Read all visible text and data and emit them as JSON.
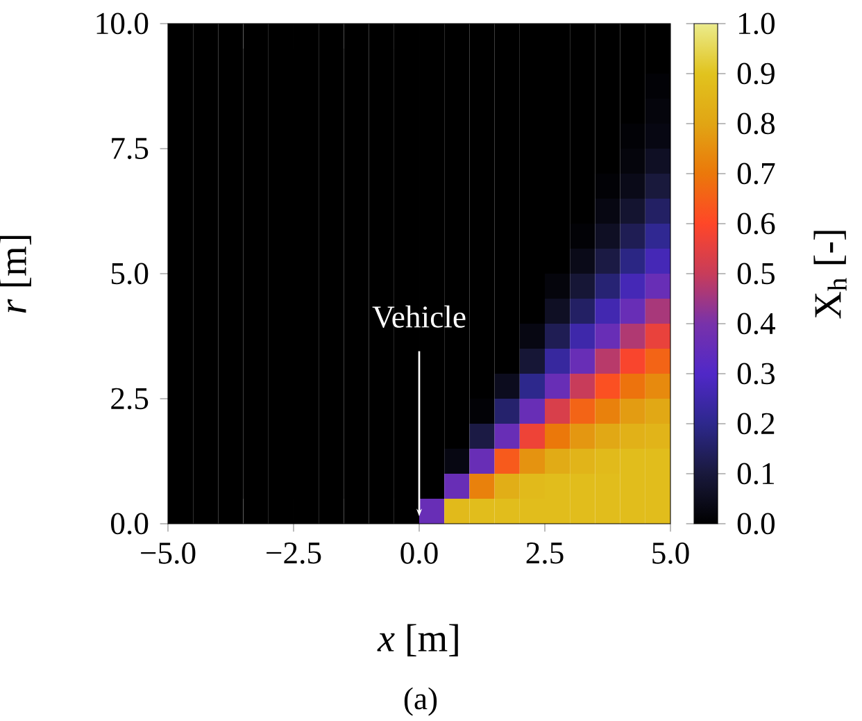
{
  "chart_data": {
    "type": "heatmap",
    "xlabel": "*x* [m]",
    "ylabel": "*r* [m]",
    "clabel": "X$_{h}$ [-]",
    "annotations": [
      "Vehicle",
      "(a)"
    ],
    "x": [
      -4.75,
      -4.25,
      -3.75,
      -3.25,
      -2.75,
      -2.25,
      -1.75,
      -1.25,
      -0.75,
      -0.25,
      0.25,
      0.75,
      1.25,
      1.75,
      2.25,
      2.75,
      3.25,
      3.75,
      4.25,
      4.75
    ],
    "y": [
      9.75,
      9.25,
      8.75,
      8.25,
      7.75,
      7.25,
      6.75,
      6.25,
      5.75,
      5.25,
      4.75,
      4.25,
      3.75,
      3.25,
      2.75,
      2.25,
      1.75,
      1.25,
      0.75,
      0.25
    ],
    "xlim": [
      -5,
      5
    ],
    "ylim": [
      0,
      10
    ],
    "xticks": [
      {
        "value": -5,
        "label": "−5.0"
      },
      {
        "value": -2.5,
        "label": "−2.5"
      },
      {
        "value": 0,
        "label": "0.0"
      },
      {
        "value": 2.5,
        "label": "2.5"
      },
      {
        "value": 5,
        "label": "5.0"
      }
    ],
    "yticks": [
      {
        "value": 0,
        "label": "0.0"
      },
      {
        "value": 2.5,
        "label": "2.5"
      },
      {
        "value": 5,
        "label": "5.0"
      },
      {
        "value": 7.5,
        "label": "7.5"
      },
      {
        "value": 10,
        "label": "10.0"
      }
    ],
    "clim": [
      0,
      1
    ],
    "cticks": [
      {
        "value": 0,
        "label": "0.0"
      },
      {
        "value": 0.1,
        "label": "0.1"
      },
      {
        "value": 0.2,
        "label": "0.2"
      },
      {
        "value": 0.3,
        "label": "0.3"
      },
      {
        "value": 0.4,
        "label": "0.4"
      },
      {
        "value": 0.5,
        "label": "0.5"
      },
      {
        "value": 0.6,
        "label": "0.6"
      },
      {
        "value": 0.7,
        "label": "0.7"
      },
      {
        "value": 0.8,
        "label": "0.8"
      },
      {
        "value": 0.9,
        "label": "0.9"
      },
      {
        "value": 1,
        "label": "1.0"
      }
    ],
    "cells": [
      [
        0,
        0,
        0,
        0,
        0,
        0,
        0,
        0,
        0,
        0,
        0,
        0,
        0,
        0,
        0,
        0,
        0,
        0,
        0,
        0
      ],
      [
        0,
        0,
        0,
        0,
        0,
        0,
        0,
        0,
        0,
        0,
        0,
        0,
        0,
        0,
        0,
        0,
        0,
        0,
        0,
        0
      ],
      [
        0,
        0,
        0,
        0,
        0,
        0,
        0,
        0,
        0,
        0,
        0,
        0,
        0,
        0,
        0,
        0,
        0,
        0,
        0,
        0.01
      ],
      [
        0,
        0,
        0,
        0,
        0,
        0,
        0,
        0,
        0,
        0,
        0,
        0,
        0,
        0,
        0,
        0,
        0,
        0,
        0,
        0.02
      ],
      [
        0,
        0,
        0,
        0,
        0,
        0,
        0,
        0,
        0,
        0,
        0,
        0,
        0,
        0,
        0,
        0,
        0,
        0,
        0.01,
        0.03
      ],
      [
        0,
        0,
        0,
        0,
        0,
        0,
        0,
        0,
        0,
        0,
        0,
        0,
        0,
        0,
        0,
        0,
        0,
        0,
        0.02,
        0.06
      ],
      [
        0,
        0,
        0,
        0,
        0,
        0,
        0,
        0,
        0,
        0,
        0,
        0,
        0,
        0,
        0,
        0,
        0,
        0.01,
        0.04,
        0.1
      ],
      [
        0,
        0,
        0,
        0,
        0,
        0,
        0,
        0,
        0,
        0,
        0,
        0,
        0,
        0,
        0,
        0,
        0,
        0.03,
        0.08,
        0.15
      ],
      [
        0,
        0,
        0,
        0,
        0,
        0,
        0,
        0,
        0,
        0,
        0,
        0,
        0,
        0,
        0,
        0,
        0.01,
        0.06,
        0.13,
        0.21
      ],
      [
        0,
        0,
        0,
        0,
        0,
        0,
        0,
        0,
        0,
        0,
        0,
        0,
        0,
        0,
        0,
        0,
        0.04,
        0.11,
        0.19,
        0.27
      ],
      [
        0,
        0,
        0,
        0,
        0,
        0,
        0,
        0,
        0,
        0,
        0,
        0,
        0,
        0,
        0,
        0.02,
        0.09,
        0.17,
        0.27,
        0.36
      ],
      [
        0,
        0,
        0,
        0,
        0,
        0,
        0,
        0,
        0,
        0,
        0,
        0,
        0,
        0,
        0,
        0.06,
        0.15,
        0.26,
        0.36,
        0.46
      ],
      [
        0,
        0,
        0,
        0,
        0,
        0,
        0,
        0,
        0,
        0,
        0,
        0,
        0,
        0,
        0.03,
        0.13,
        0.25,
        0.36,
        0.47,
        0.56
      ],
      [
        0,
        0,
        0,
        0,
        0,
        0,
        0,
        0,
        0,
        0,
        0,
        0,
        0,
        0,
        0.09,
        0.23,
        0.36,
        0.48,
        0.59,
        0.66
      ],
      [
        0,
        0,
        0,
        0,
        0,
        0,
        0,
        0,
        0,
        0,
        0,
        0,
        0,
        0.05,
        0.2,
        0.36,
        0.5,
        0.62,
        0.69,
        0.74
      ],
      [
        0,
        0,
        0,
        0,
        0,
        0,
        0,
        0,
        0,
        0,
        0,
        0,
        0.01,
        0.16,
        0.36,
        0.53,
        0.66,
        0.72,
        0.78,
        0.81
      ],
      [
        0,
        0,
        0,
        0,
        0,
        0,
        0,
        0,
        0,
        0,
        0,
        0,
        0.11,
        0.36,
        0.57,
        0.7,
        0.77,
        0.81,
        0.84,
        0.85
      ],
      [
        0,
        0,
        0,
        0,
        0,
        0,
        0,
        0,
        0,
        0,
        0,
        0.03,
        0.36,
        0.64,
        0.76,
        0.82,
        0.85,
        0.87,
        0.88,
        0.88
      ],
      [
        0,
        0,
        0,
        0,
        0,
        0,
        0,
        0,
        0,
        0,
        0,
        0.36,
        0.72,
        0.83,
        0.87,
        0.88,
        0.88,
        0.88,
        0.88,
        0.88
      ],
      [
        0,
        0,
        0,
        0,
        0,
        0,
        0,
        0,
        0,
        0,
        0.36,
        0.87,
        0.88,
        0.88,
        0.88,
        0.88,
        0.88,
        0.88,
        0.88,
        0.88
      ]
    ]
  }
}
